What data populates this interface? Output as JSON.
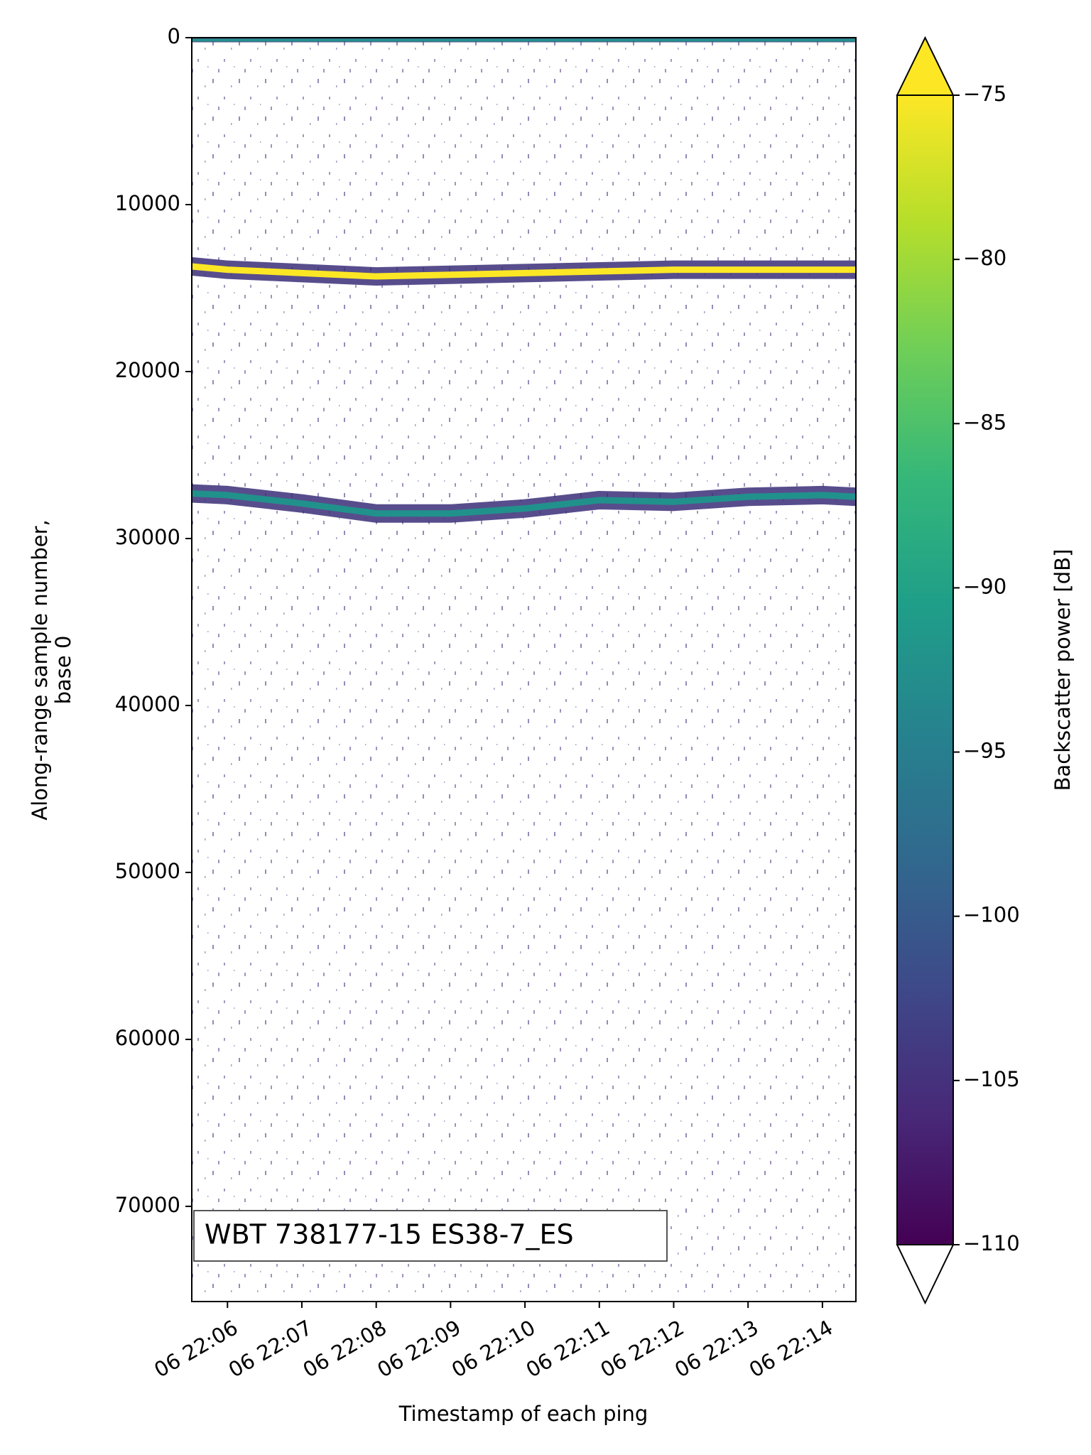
{
  "chart_data": {
    "type": "echogram",
    "xlabel": "Timestamp of each ping",
    "ylabel": [
      "Along-range sample number,",
      "base 0"
    ],
    "annotation": "WBT 738177-15 ES38-7_ES",
    "xlim": [
      1325.52,
      1334.45
    ],
    "xticks": [
      {
        "value": 1326,
        "label": "06 22:06"
      },
      {
        "value": 1327,
        "label": "06 22:07"
      },
      {
        "value": 1328,
        "label": "06 22:08"
      },
      {
        "value": 1329,
        "label": "06 22:09"
      },
      {
        "value": 1330,
        "label": "06 22:10"
      },
      {
        "value": 1331,
        "label": "06 22:11"
      },
      {
        "value": 1332,
        "label": "06 22:12"
      },
      {
        "value": 1333,
        "label": "06 22:13"
      },
      {
        "value": 1334,
        "label": "06 22:14"
      }
    ],
    "ylim": [
      0,
      75700
    ],
    "y_inverted": true,
    "yticks": [
      0,
      10000,
      20000,
      30000,
      40000,
      50000,
      60000,
      70000
    ],
    "x": [
      1325.52,
      1326,
      1327,
      1328,
      1329,
      1330,
      1331,
      1332,
      1333,
      1334,
      1334.45
    ],
    "series": [
      {
        "color": "#21918c",
        "values": [
          150,
          150,
          150,
          150,
          150,
          150,
          150,
          150,
          150,
          150,
          150
        ]
      },
      {
        "color": "#fde725",
        "values": [
          13700,
          13900,
          14100,
          14300,
          14200,
          14100,
          14000,
          13900,
          13900,
          13900,
          13900
        ]
      },
      {
        "color": "#21918c",
        "values": [
          27300,
          27400,
          27900,
          28500,
          28500,
          28200,
          27700,
          27800,
          27500,
          27400,
          27500
        ]
      }
    ],
    "colorbar": {
      "label": "Backscatter power [dB]",
      "clim": [
        -110,
        -75
      ],
      "colormap": [
        "#440154",
        "#482878",
        "#3e4989",
        "#31688e",
        "#26828e",
        "#1f9e89",
        "#35b779",
        "#6ece58",
        "#b5de2b",
        "#fde725"
      ],
      "extend": "both",
      "under_color": "#ffffff",
      "over_color": "#fde725",
      "ticks": [
        {
          "value": -75,
          "label": "−75"
        },
        {
          "value": -80,
          "label": "−80"
        },
        {
          "value": -85,
          "label": "−85"
        },
        {
          "value": -90,
          "label": "−90"
        },
        {
          "value": -95,
          "label": "−95"
        },
        {
          "value": -100,
          "label": "−100"
        },
        {
          "value": -105,
          "label": "−105"
        },
        {
          "value": -110,
          "label": "−110"
        }
      ]
    }
  }
}
